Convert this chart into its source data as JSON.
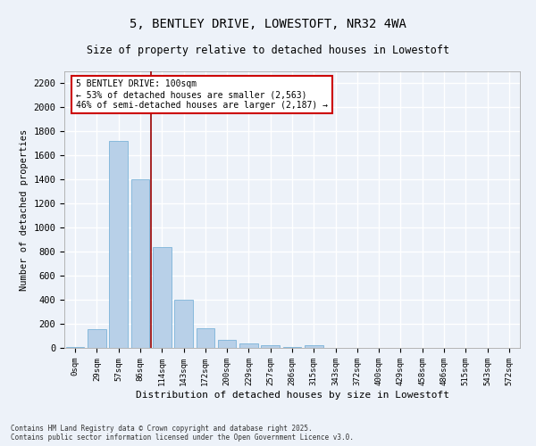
{
  "title_line1": "5, BENTLEY DRIVE, LOWESTOFT, NR32 4WA",
  "title_line2": "Size of property relative to detached houses in Lowestoft",
  "xlabel": "Distribution of detached houses by size in Lowestoft",
  "ylabel": "Number of detached properties",
  "categories": [
    "0sqm",
    "29sqm",
    "57sqm",
    "86sqm",
    "114sqm",
    "143sqm",
    "172sqm",
    "200sqm",
    "229sqm",
    "257sqm",
    "286sqm",
    "315sqm",
    "343sqm",
    "372sqm",
    "400sqm",
    "429sqm",
    "458sqm",
    "486sqm",
    "515sqm",
    "543sqm",
    "572sqm"
  ],
  "values": [
    5,
    155,
    1720,
    1400,
    835,
    400,
    160,
    65,
    35,
    20,
    5,
    25,
    0,
    0,
    0,
    0,
    0,
    0,
    0,
    0,
    0
  ],
  "bar_color": "#b8d0e8",
  "bar_edge_color": "#6aaad4",
  "ylim": [
    0,
    2300
  ],
  "yticks": [
    0,
    200,
    400,
    600,
    800,
    1000,
    1200,
    1400,
    1600,
    1800,
    2000,
    2200
  ],
  "vline_x": 3.5,
  "vline_color": "#990000",
  "annotation_text": "5 BENTLEY DRIVE: 100sqm\n← 53% of detached houses are smaller (2,563)\n46% of semi-detached houses are larger (2,187) →",
  "annotation_box_color": "#ffffff",
  "annotation_box_edge": "#cc0000",
  "background_color": "#edf2f9",
  "grid_color": "#ffffff",
  "footer_line1": "Contains HM Land Registry data © Crown copyright and database right 2025.",
  "footer_line2": "Contains public sector information licensed under the Open Government Licence v3.0."
}
